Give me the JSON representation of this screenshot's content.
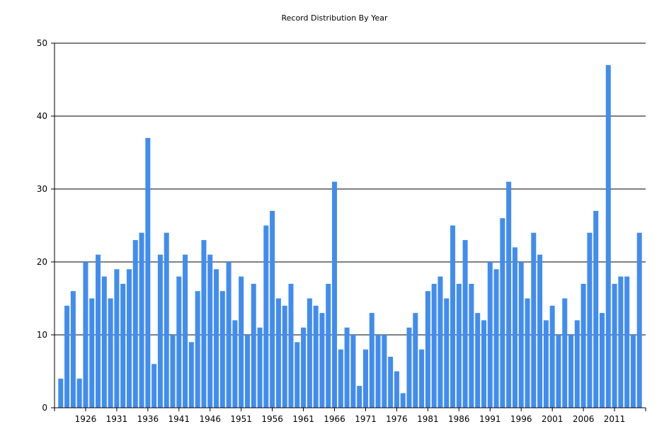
{
  "chart_data": {
    "type": "bar",
    "title": "Record Distribution By Year",
    "xlabel": "",
    "ylabel": "",
    "ylim": [
      0,
      50
    ],
    "yticks": [
      0,
      10,
      20,
      30,
      40,
      50
    ],
    "xticks": [
      1926,
      1931,
      1936,
      1941,
      1946,
      1951,
      1956,
      1961,
      1966,
      1971,
      1976,
      1981,
      1986,
      1991,
      1996,
      2001,
      2006,
      2011
    ],
    "grid": "horizontal",
    "bar_color": "#418cf0",
    "categories": [
      1922,
      1923,
      1924,
      1925,
      1926,
      1927,
      1928,
      1929,
      1930,
      1931,
      1932,
      1933,
      1934,
      1935,
      1936,
      1937,
      1938,
      1939,
      1940,
      1941,
      1942,
      1943,
      1944,
      1945,
      1946,
      1947,
      1948,
      1949,
      1950,
      1951,
      1952,
      1953,
      1954,
      1955,
      1956,
      1957,
      1958,
      1959,
      1960,
      1961,
      1962,
      1963,
      1964,
      1965,
      1966,
      1967,
      1968,
      1969,
      1970,
      1971,
      1972,
      1973,
      1974,
      1975,
      1976,
      1977,
      1978,
      1979,
      1980,
      1981,
      1982,
      1983,
      1984,
      1985,
      1986,
      1987,
      1988,
      1989,
      1990,
      1991,
      1992,
      1993,
      1994,
      1995,
      1996,
      1997,
      1998,
      1999,
      2000,
      2001,
      2002,
      2003,
      2004,
      2005,
      2006,
      2007,
      2008,
      2009,
      2010,
      2011,
      2012,
      2013,
      2014,
      2015
    ],
    "values": [
      4,
      14,
      16,
      4,
      20,
      15,
      21,
      18,
      15,
      19,
      17,
      19,
      23,
      24,
      37,
      6,
      21,
      24,
      10,
      18,
      21,
      9,
      16,
      23,
      21,
      19,
      16,
      20,
      12,
      18,
      10,
      17,
      11,
      25,
      27,
      15,
      14,
      17,
      9,
      11,
      15,
      14,
      13,
      17,
      31,
      8,
      11,
      10,
      3,
      8,
      13,
      10,
      10,
      7,
      5,
      2,
      11,
      13,
      8,
      16,
      17,
      18,
      15,
      25,
      17,
      23,
      17,
      13,
      12,
      20,
      19,
      26,
      31,
      22,
      20,
      15,
      24,
      21,
      12,
      14,
      10,
      15,
      10,
      12,
      17,
      24,
      27,
      13,
      47,
      17,
      18,
      18,
      10,
      24
    ]
  }
}
